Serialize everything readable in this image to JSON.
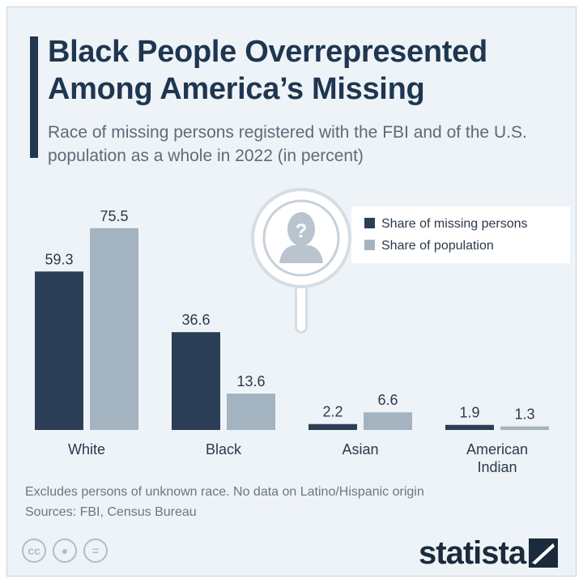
{
  "header": {
    "title": "Black People Overrepresented Among America’s Missing",
    "subtitle": "Race of missing persons registered with the FBI and of the U.S. population as a whole in 2022 (in percent)"
  },
  "footer": {
    "note": "Excludes persons of unknown race. No data on Latino/Hispanic origin",
    "sources": "Sources: FBI, Census Bureau",
    "brand": "statista"
  },
  "colors": {
    "dark_navy": "#2b3e56",
    "light_steel": "#a3b3c0",
    "background": "#eef3f8"
  },
  "icons": [
    "magnifier-missing-person-icon",
    "cc-icon",
    "by-icon",
    "nd-icon",
    "statista-logo-icon"
  ],
  "chart_data": {
    "type": "bar",
    "categories": [
      "White",
      "Black",
      "Asian",
      "American Indian"
    ],
    "series": [
      {
        "name": "Share of missing persons",
        "color": "#2b3e56",
        "values": [
          59.3,
          36.6,
          2.2,
          1.9
        ]
      },
      {
        "name": "Share of population",
        "color": "#a3b3c0",
        "values": [
          75.5,
          13.6,
          6.6,
          1.3
        ]
      }
    ],
    "value_labels": [
      [
        "59.3",
        "36.6",
        "2.2",
        "1.9"
      ],
      [
        "75.5",
        "13.6",
        "6.6",
        "1.3"
      ]
    ],
    "legend": "top-right",
    "grid": false,
    "ylim": [
      0,
      80
    ]
  }
}
